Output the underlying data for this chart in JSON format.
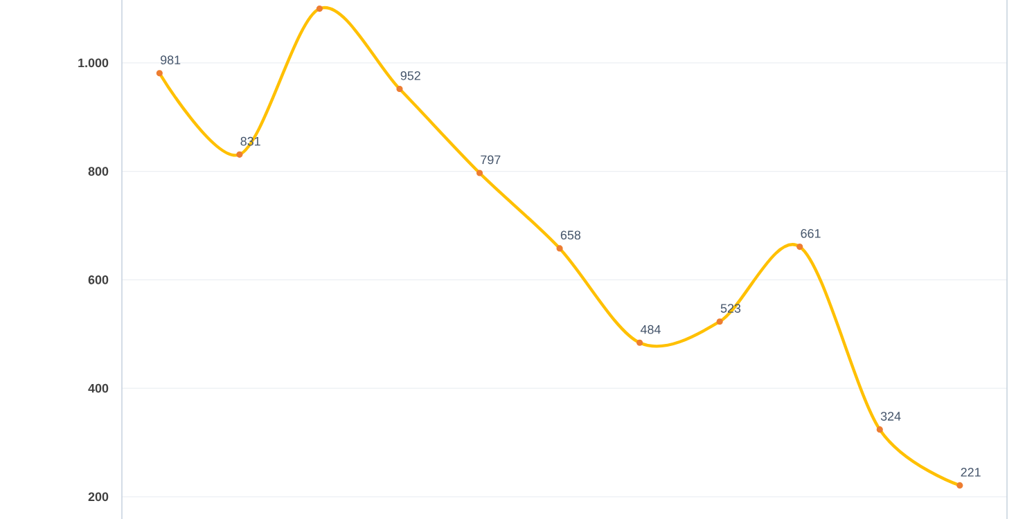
{
  "chart_data": {
    "type": "line",
    "categories": [
      null,
      null,
      null,
      null,
      null,
      null,
      null,
      null,
      null,
      null,
      null
    ],
    "series": [
      {
        "color": "#ffc000",
        "values": [
          981,
          831,
          1100,
          952,
          797,
          658,
          484,
          523,
          661,
          324,
          221
        ],
        "value_labels": [
          "981",
          "831",
          null,
          "952",
          "797",
          "658",
          "484",
          "523",
          "661",
          "324",
          "221"
        ]
      }
    ],
    "ylim": [
      159,
      1116
    ],
    "yticks": [
      200,
      400,
      600,
      800,
      {
        "value": 1000,
        "label": "1.000"
      }
    ],
    "grid": "y",
    "marker": "circle",
    "line_style": "solid"
  }
}
